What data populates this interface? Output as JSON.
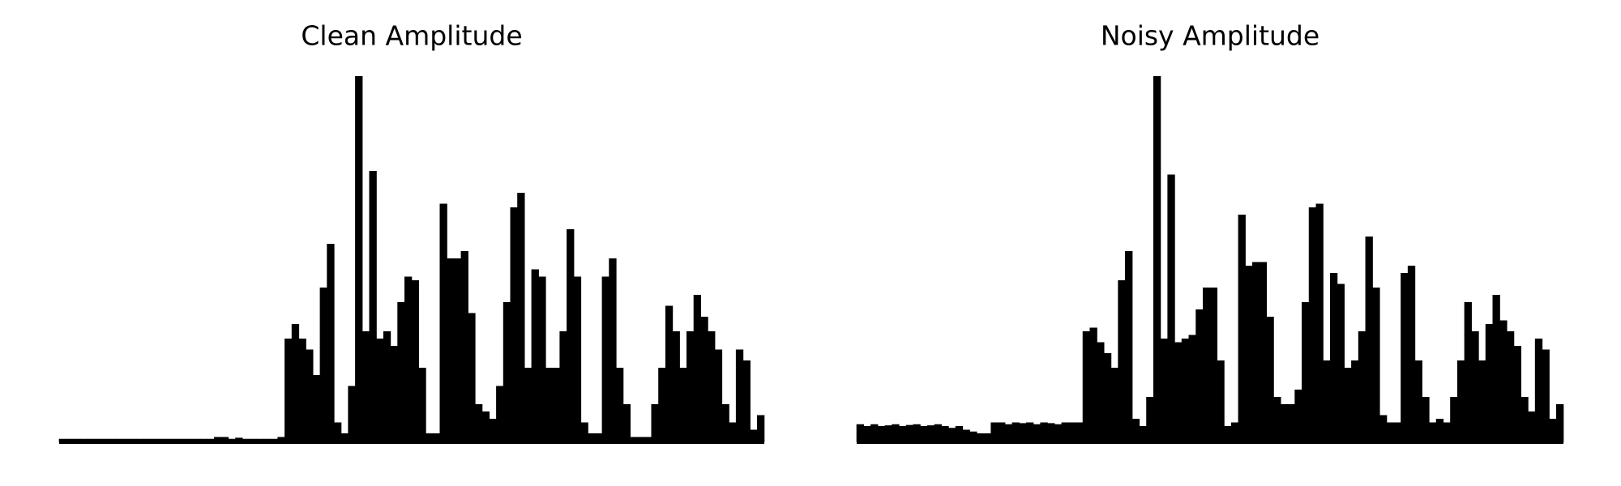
{
  "chart_data": [
    {
      "type": "bar",
      "title": "Clean Amplitude",
      "color": "#000000",
      "ylim": [
        0,
        1
      ],
      "values": [
        0.005,
        0.005,
        0.005,
        0.005,
        0.005,
        0.005,
        0.005,
        0.005,
        0.005,
        0.005,
        0.005,
        0.005,
        0.005,
        0.005,
        0.005,
        0.005,
        0.005,
        0.005,
        0.005,
        0.005,
        0.005,
        0.005,
        0.01,
        0.01,
        0.005,
        0.008,
        0.005,
        0.005,
        0.005,
        0.005,
        0.005,
        0.01,
        0.28,
        0.32,
        0.28,
        0.25,
        0.18,
        0.42,
        0.54,
        0.05,
        0.02,
        0.15,
        1.0,
        0.3,
        0.74,
        0.28,
        0.3,
        0.26,
        0.38,
        0.45,
        0.44,
        0.2,
        0.02,
        0.02,
        0.65,
        0.5,
        0.5,
        0.52,
        0.35,
        0.1,
        0.08,
        0.06,
        0.15,
        0.38,
        0.64,
        0.68,
        0.2,
        0.47,
        0.45,
        0.2,
        0.2,
        0.3,
        0.58,
        0.45,
        0.05,
        0.02,
        0.02,
        0.45,
        0.5,
        0.2,
        0.1,
        0.01,
        0.01,
        0.01,
        0.1,
        0.2,
        0.37,
        0.3,
        0.2,
        0.3,
        0.4,
        0.34,
        0.3,
        0.25,
        0.1,
        0.05,
        0.25,
        0.22,
        0.03,
        0.07
      ]
    },
    {
      "type": "bar",
      "title": "Noisy Amplitude",
      "color": "#000000",
      "ylim": [
        0,
        1
      ],
      "values": [
        0.045,
        0.04,
        0.045,
        0.04,
        0.042,
        0.045,
        0.04,
        0.043,
        0.045,
        0.04,
        0.042,
        0.045,
        0.04,
        0.035,
        0.04,
        0.03,
        0.025,
        0.02,
        0.02,
        0.05,
        0.05,
        0.045,
        0.05,
        0.048,
        0.05,
        0.045,
        0.05,
        0.048,
        0.045,
        0.05,
        0.05,
        0.05,
        0.3,
        0.31,
        0.27,
        0.24,
        0.2,
        0.44,
        0.52,
        0.06,
        0.04,
        0.12,
        1.0,
        0.28,
        0.73,
        0.27,
        0.28,
        0.29,
        0.36,
        0.42,
        0.42,
        0.22,
        0.04,
        0.05,
        0.62,
        0.48,
        0.49,
        0.49,
        0.34,
        0.12,
        0.1,
        0.1,
        0.14,
        0.38,
        0.64,
        0.65,
        0.22,
        0.46,
        0.43,
        0.2,
        0.22,
        0.3,
        0.56,
        0.42,
        0.07,
        0.05,
        0.05,
        0.46,
        0.48,
        0.22,
        0.12,
        0.05,
        0.06,
        0.05,
        0.12,
        0.22,
        0.38,
        0.3,
        0.22,
        0.32,
        0.4,
        0.33,
        0.3,
        0.26,
        0.12,
        0.08,
        0.28,
        0.25,
        0.06,
        0.1
      ]
    }
  ]
}
